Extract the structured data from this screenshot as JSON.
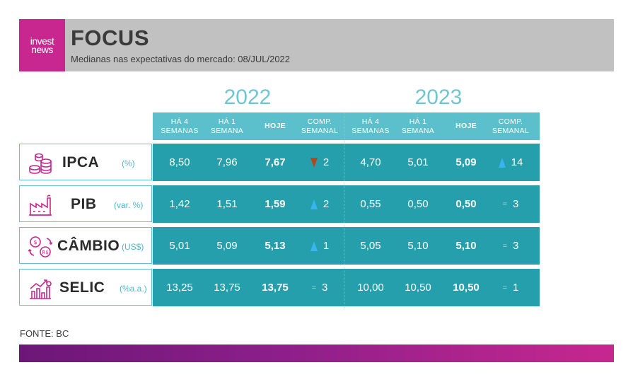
{
  "header": {
    "logo_line1": "invest",
    "logo_line2": "news",
    "title": "FOCUS",
    "subtitle": "Medianas nas expectativas do mercado: 08/JUL/2022"
  },
  "years": [
    "2022",
    "2023"
  ],
  "columns": [
    {
      "line1": "HÁ 4",
      "line2": "SEMANAS"
    },
    {
      "line1": "HÁ 1",
      "line2": "SEMANA"
    },
    {
      "line1": "HOJE",
      "line2": ""
    },
    {
      "line1": "COMP.",
      "line2": "SEMANAL"
    }
  ],
  "rows": [
    {
      "name": "IPCA",
      "unit": "(%)",
      "icon": "coins-icon",
      "y2022": {
        "ha4": "8,50",
        "ha1": "7,96",
        "hoje": "7,67",
        "comp_dir": "down",
        "comp": "2"
      },
      "y2023": {
        "ha4": "4,70",
        "ha1": "5,01",
        "hoje": "5,09",
        "comp_dir": "up",
        "comp": "14"
      }
    },
    {
      "name": "PIB",
      "unit": "(var. %)",
      "icon": "factory-icon",
      "y2022": {
        "ha4": "1,42",
        "ha1": "1,51",
        "hoje": "1,59",
        "comp_dir": "up",
        "comp": "2"
      },
      "y2023": {
        "ha4": "0,55",
        "ha1": "0,50",
        "hoje": "0,50",
        "comp_dir": "equal",
        "comp": "3"
      }
    },
    {
      "name": "CÂMBIO",
      "unit": "(US$)",
      "icon": "currency-exchange-icon",
      "y2022": {
        "ha4": "5,01",
        "ha1": "5,09",
        "hoje": "5,13",
        "comp_dir": "up",
        "comp": "1"
      },
      "y2023": {
        "ha4": "5,05",
        "ha1": "5,10",
        "hoje": "5,10",
        "comp_dir": "equal",
        "comp": "3"
      }
    },
    {
      "name": "SELIC",
      "unit": "(%a.a.)",
      "icon": "rate-chart-icon",
      "y2022": {
        "ha4": "13,25",
        "ha1": "13,75",
        "hoje": "13,75",
        "comp_dir": "equal",
        "comp": "3"
      },
      "y2023": {
        "ha4": "10,00",
        "ha1": "10,50",
        "hoje": "10,50",
        "comp_dir": "equal",
        "comp": "1"
      }
    }
  ],
  "equal_symbol": "=",
  "source": "FONTE: BC",
  "colors": {
    "brand": "#c7278f",
    "teal": "#269fad",
    "header_teal": "#5bc0cc",
    "up": "#38b4ef",
    "down": "#b5471e"
  }
}
